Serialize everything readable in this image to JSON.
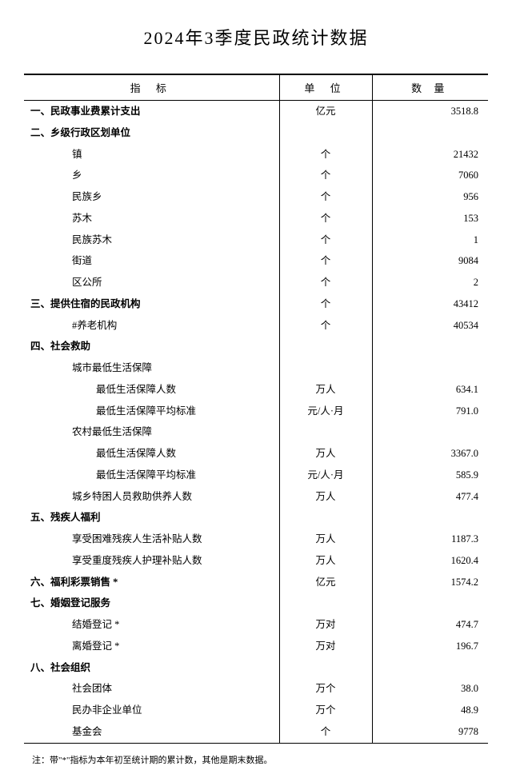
{
  "title": "2024年3季度民政统计数据",
  "headers": {
    "indicator": "指   标",
    "unit": "单 位",
    "amount": "数   量"
  },
  "rows": [
    {
      "indicator": "一、民政事业费累计支出",
      "unit": "亿元",
      "amount": "3518.8",
      "class": "section-header"
    },
    {
      "indicator": "二、乡级行政区划单位",
      "unit": "",
      "amount": "",
      "class": "section-header"
    },
    {
      "indicator": "镇",
      "unit": "个",
      "amount": "21432",
      "class": "indent-1"
    },
    {
      "indicator": "乡",
      "unit": "个",
      "amount": "7060",
      "class": "indent-1"
    },
    {
      "indicator": "民族乡",
      "unit": "个",
      "amount": "956",
      "class": "indent-1"
    },
    {
      "indicator": "苏木",
      "unit": "个",
      "amount": "153",
      "class": "indent-1"
    },
    {
      "indicator": "民族苏木",
      "unit": "个",
      "amount": "1",
      "class": "indent-1"
    },
    {
      "indicator": "街道",
      "unit": "个",
      "amount": "9084",
      "class": "indent-1"
    },
    {
      "indicator": "区公所",
      "unit": "个",
      "amount": "2",
      "class": "indent-1"
    },
    {
      "indicator": "三、提供住宿的民政机构",
      "unit": "个",
      "amount": "43412",
      "class": "section-header"
    },
    {
      "indicator": "#养老机构",
      "unit": "个",
      "amount": "40534",
      "class": "indent-1"
    },
    {
      "indicator": "四、社会救助",
      "unit": "",
      "amount": "",
      "class": "section-header"
    },
    {
      "indicator": "城市最低生活保障",
      "unit": "",
      "amount": "",
      "class": "indent-1"
    },
    {
      "indicator": "最低生活保障人数",
      "unit": "万人",
      "amount": "634.1",
      "class": "indent-2"
    },
    {
      "indicator": "最低生活保障平均标准",
      "unit": "元/人·月",
      "amount": "791.0",
      "class": "indent-2"
    },
    {
      "indicator": "农村最低生活保障",
      "unit": "",
      "amount": "",
      "class": "indent-1"
    },
    {
      "indicator": "最低生活保障人数",
      "unit": "万人",
      "amount": "3367.0",
      "class": "indent-2"
    },
    {
      "indicator": "最低生活保障平均标准",
      "unit": "元/人·月",
      "amount": "585.9",
      "class": "indent-2"
    },
    {
      "indicator": "城乡特困人员救助供养人数",
      "unit": "万人",
      "amount": "477.4",
      "class": "indent-1"
    },
    {
      "indicator": "五、残疾人福利",
      "unit": "",
      "amount": "",
      "class": "section-header"
    },
    {
      "indicator": "享受困难残疾人生活补贴人数",
      "unit": "万人",
      "amount": "1187.3",
      "class": "indent-1"
    },
    {
      "indicator": "享受重度残疾人护理补贴人数",
      "unit": "万人",
      "amount": "1620.4",
      "class": "indent-1"
    },
    {
      "indicator": "六、福利彩票销售 *",
      "unit": "亿元",
      "amount": "1574.2",
      "class": "section-header"
    },
    {
      "indicator": "七、婚姻登记服务",
      "unit": "",
      "amount": "",
      "class": "section-header"
    },
    {
      "indicator": "结婚登记 *",
      "unit": "万对",
      "amount": "474.7",
      "class": "indent-1"
    },
    {
      "indicator": "离婚登记 *",
      "unit": "万对",
      "amount": "196.7",
      "class": "indent-1"
    },
    {
      "indicator": "八、社会组织",
      "unit": "",
      "amount": "",
      "class": "section-header"
    },
    {
      "indicator": "社会团体",
      "unit": "万个",
      "amount": "38.0",
      "class": "indent-1"
    },
    {
      "indicator": "民办非企业单位",
      "unit": "万个",
      "amount": "48.9",
      "class": "indent-1"
    },
    {
      "indicator": "基金会",
      "unit": "个",
      "amount": "9778",
      "class": "indent-1"
    }
  ],
  "footnote": "注：带\"*\"指标为本年初至统计期的累计数，其他是期末数据。"
}
